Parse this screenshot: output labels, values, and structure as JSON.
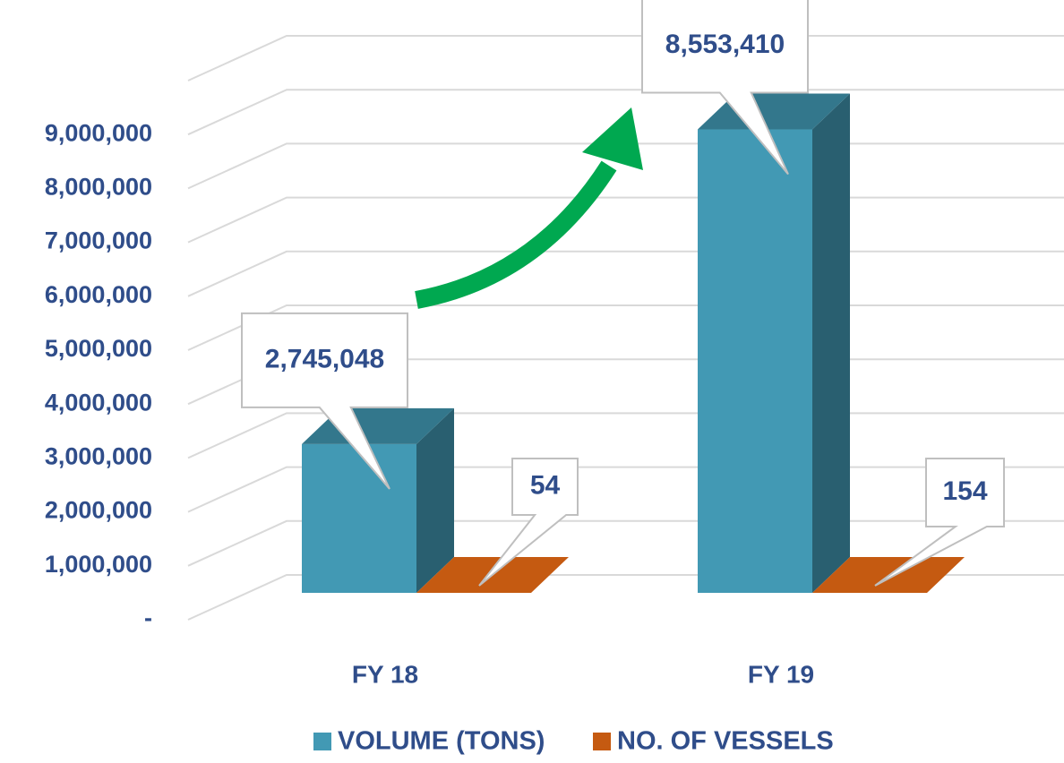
{
  "chart_data": {
    "type": "bar3d",
    "categories": [
      "FY 18",
      "FY 19"
    ],
    "series": [
      {
        "name": "VOLUME (TONS)",
        "color": "#4299b4",
        "values": [
          2745048,
          8553410
        ],
        "value_labels": [
          "2,745,048",
          "8,553,410"
        ]
      },
      {
        "name": "NO. OF VESSELS",
        "color": "#c55a11",
        "values": [
          54,
          154
        ]
      }
    ],
    "ylim": [
      0,
      10000000
    ],
    "yticks": [
      {
        "value": 0,
        "label": "-"
      },
      {
        "value": 1000000,
        "label": "1,000,000"
      },
      {
        "value": 2000000,
        "label": "2,000,000"
      },
      {
        "value": 3000000,
        "label": "3,000,000"
      },
      {
        "value": 4000000,
        "label": "4,000,000"
      },
      {
        "value": 5000000,
        "label": "5,000,000"
      },
      {
        "value": 6000000,
        "label": "6,000,000"
      },
      {
        "value": 7000000,
        "label": "7,000,000"
      },
      {
        "value": 8000000,
        "label": "8,000,000"
      },
      {
        "value": 9000000,
        "label": "9,000,000"
      }
    ],
    "grid": true,
    "legend": "bottom"
  }
}
